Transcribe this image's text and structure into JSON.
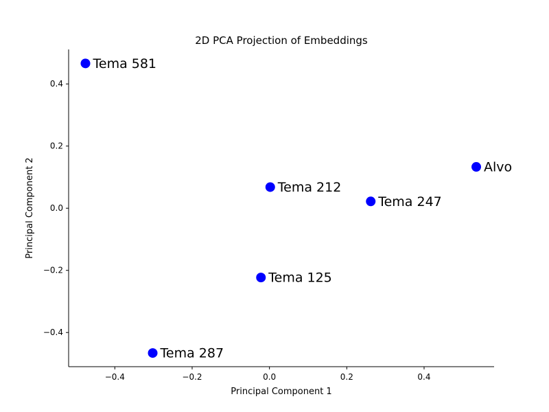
{
  "chart_data": {
    "type": "scatter",
    "title": "2D PCA Projection of Embeddings",
    "xlabel": "Principal Component 1",
    "ylabel": "Principal Component 2",
    "xlim": [
      -0.5195,
      0.5811
    ],
    "ylim": [
      -0.51,
      0.511
    ],
    "xticks": [
      -0.4,
      -0.2,
      0.0,
      0.2,
      0.4
    ],
    "yticks": [
      -0.4,
      -0.2,
      0.0,
      0.2,
      0.4
    ],
    "xtick_labels": [
      "−0.4",
      "−0.2",
      "0.0",
      "0.2",
      "0.4"
    ],
    "ytick_labels": [
      "−0.4",
      "−0.2",
      "0.0",
      "0.2",
      "0.4"
    ],
    "marker_color": "#0000ff",
    "grid": false,
    "points": [
      {
        "label": "Tema 581",
        "x": -0.476,
        "y": 0.466
      },
      {
        "label": "Alvo",
        "x": 0.535,
        "y": 0.133
      },
      {
        "label": "Tema 212",
        "x": 0.002,
        "y": 0.068
      },
      {
        "label": "Tema 247",
        "x": 0.262,
        "y": 0.022
      },
      {
        "label": "Tema 125",
        "x": -0.022,
        "y": -0.223
      },
      {
        "label": "Tema 287",
        "x": -0.302,
        "y": -0.466
      }
    ]
  }
}
